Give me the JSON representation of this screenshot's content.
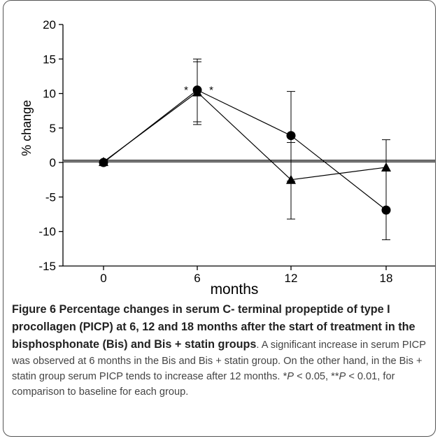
{
  "chart_data": {
    "type": "line",
    "x": [
      0,
      6,
      12,
      18
    ],
    "ylabel": "% change",
    "xlabel": "months",
    "ylim": [
      -15,
      20
    ],
    "yticks": [
      20,
      15,
      10,
      5,
      0,
      -5,
      -10,
      -15
    ],
    "xticks": [
      "0",
      "6",
      "12",
      "18"
    ],
    "reference_line_y": 0.2,
    "series": [
      {
        "marker": "circle",
        "values": [
          0,
          10.5,
          3.9,
          -6.9
        ],
        "err_upper": [
          null,
          15.0,
          10.3,
          3.3
        ],
        "err_lower": [
          null,
          5.5,
          -2.7,
          -11.2
        ]
      },
      {
        "marker": "triangle",
        "values": [
          0.1,
          10.2,
          -2.5,
          -0.7
        ],
        "err_upper": [
          null,
          14.6,
          2.9,
          null
        ],
        "err_lower": [
          null,
          5.9,
          -8.2,
          null
        ]
      }
    ],
    "annotations": [
      {
        "text": "*",
        "x": 6,
        "side": "left"
      },
      {
        "text": "*",
        "x": 6,
        "side": "right"
      }
    ]
  },
  "caption": {
    "title": "Figure 6 Percentage changes in serum C- terminal propeptide of type I procollagen (PICP) at 6, 12 and 18 months after the start of treatment in the bisphosphonate (Bis) and Bis + statin groups",
    "body1": ". A significant increase in serum PICP was observed at 6 months in the Bis and Bis + statin group. On the other hand, in the Bis + statin group serum PICP tends to increase after 12 months.",
    "p1_prefix": "*",
    "p_symbol": "P",
    "p1_suffix": " < 0.05, **",
    "p2_suffix": " < 0.01, for comparison to baseline for each group."
  }
}
